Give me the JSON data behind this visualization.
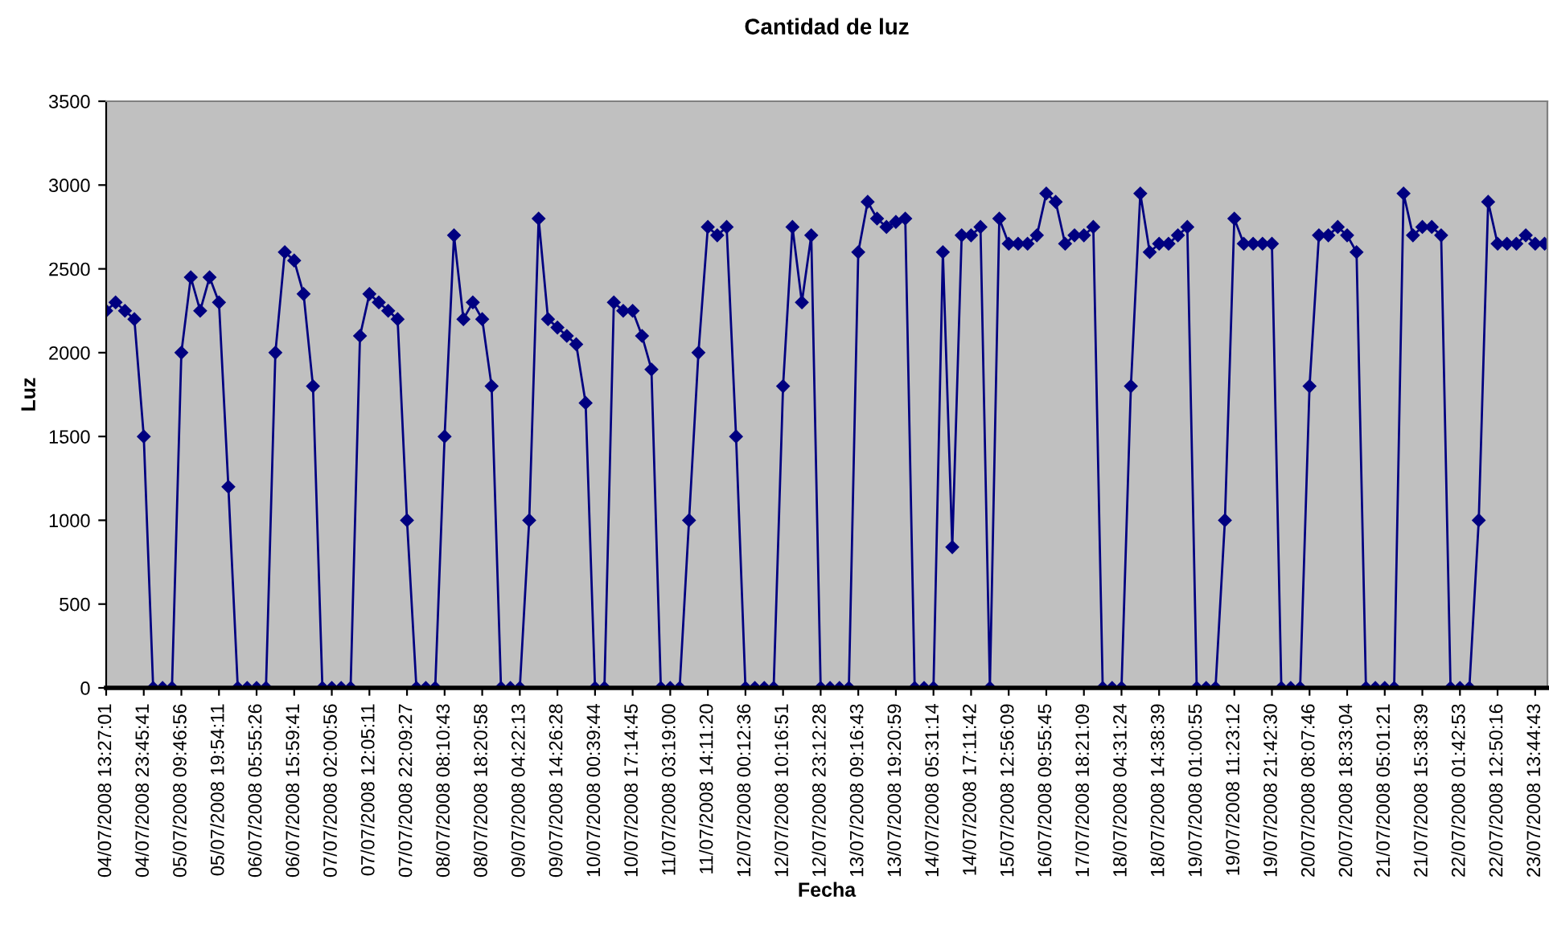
{
  "chart_data": {
    "type": "line",
    "title": "Cantidad de luz",
    "xlabel": "Fecha",
    "ylabel": "Luz",
    "categories": [
      "04/07/2008 13:27:01",
      null,
      null,
      null,
      "04/07/2008 23:45:41",
      null,
      null,
      null,
      "05/07/2008 09:46:56",
      null,
      null,
      null,
      "05/07/2008 19:54:11",
      null,
      null,
      null,
      "06/07/2008 05:55:26",
      null,
      null,
      null,
      "06/07/2008 15:59:41",
      null,
      null,
      null,
      "07/07/2008 02:00:56",
      null,
      null,
      null,
      "07/07/2008 12:05:11",
      null,
      null,
      null,
      "07/07/2008 22:09:27",
      null,
      null,
      null,
      "08/07/2008 08:10:43",
      null,
      null,
      null,
      "08/07/2008 18:20:58",
      null,
      null,
      null,
      "09/07/2008 04:22:13",
      null,
      null,
      null,
      "09/07/2008 14:26:28",
      null,
      null,
      null,
      "10/07/2008 00:39:44",
      null,
      null,
      null,
      "10/07/2008 17:14:45",
      null,
      null,
      null,
      "11/07/2008 03:19:00",
      null,
      null,
      null,
      "11/07/2008 14:11:20",
      null,
      null,
      null,
      "12/07/2008 00:12:36",
      null,
      null,
      null,
      "12/07/2008 10:16:51",
      null,
      null,
      null,
      "12/07/2008 23:12:28",
      null,
      null,
      null,
      "13/07/2008 09:16:43",
      null,
      null,
      null,
      "13/07/2008 19:20:59",
      null,
      null,
      null,
      "14/07/2008 05:31:14",
      null,
      null,
      null,
      "14/07/2008 17:11:42",
      null,
      null,
      null,
      "15/07/2008 12:56:09",
      null,
      null,
      null,
      "16/07/2008 09:55:45",
      null,
      null,
      null,
      "17/07/2008 18:21:09",
      null,
      null,
      null,
      "18/07/2008 04:31:24",
      null,
      null,
      null,
      "18/07/2008 14:38:39",
      null,
      null,
      null,
      "19/07/2008 01:00:55",
      null,
      null,
      null,
      "19/07/2008 11:23:12",
      null,
      null,
      null,
      "19/07/2008 21:42:30",
      null,
      null,
      null,
      "20/07/2008 08:07:46",
      null,
      null,
      null,
      "20/07/2008 18:33:04",
      null,
      null,
      null,
      "21/07/2008 05:01:21",
      null,
      null,
      null,
      "21/07/2008 15:38:39",
      null,
      null,
      null,
      "22/07/2008 01:42:53",
      null,
      null,
      null,
      "22/07/2008 12:50:16",
      null,
      null,
      null,
      "23/07/2008 13:44:43",
      null
    ],
    "series": [
      {
        "color": "#000080",
        "values": [
          2250,
          2300,
          2250,
          2200,
          1500,
          0,
          0,
          0,
          2000,
          2450,
          2250,
          2450,
          2300,
          1200,
          0,
          0,
          0,
          0,
          2000,
          2600,
          2550,
          2350,
          1800,
          0,
          0,
          0,
          0,
          2100,
          2350,
          2300,
          2250,
          2200,
          1000,
          0,
          0,
          0,
          1500,
          2700,
          2200,
          2300,
          2200,
          1800,
          0,
          0,
          0,
          1000,
          2800,
          2200,
          2150,
          2100,
          2050,
          1700,
          0,
          0,
          2300,
          2250,
          2250,
          2100,
          1900,
          0,
          0,
          0,
          1000,
          2000,
          2750,
          2700,
          2750,
          1500,
          0,
          0,
          0,
          0,
          1800,
          2750,
          2300,
          2700,
          0,
          0,
          0,
          0,
          2600,
          2900,
          2800,
          2750,
          2780,
          2800,
          0,
          0,
          0,
          2600,
          840,
          2700,
          2700,
          2750,
          0,
          2800,
          2650,
          2650,
          2650,
          2700,
          2950,
          2900,
          2650,
          2700,
          2700,
          2750,
          0,
          0,
          0,
          1800,
          2950,
          2600,
          2650,
          2650,
          2700,
          2750,
          0,
          0,
          0,
          1000,
          2800,
          2650,
          2650,
          2650,
          2650,
          0,
          0,
          0,
          1800,
          2700,
          2700,
          2750,
          2700,
          2600,
          0,
          0,
          0,
          0,
          2950,
          2700,
          2750,
          2750,
          2700,
          0,
          0,
          0,
          1000,
          2900,
          2650,
          2650,
          2650,
          2700,
          2650,
          2650
        ]
      }
    ],
    "marker": "diamond",
    "line_style": "solid",
    "ylim": [
      0,
      3500
    ],
    "yticks": [
      0,
      500,
      1000,
      1500,
      2000,
      2500,
      3000,
      3500
    ]
  }
}
